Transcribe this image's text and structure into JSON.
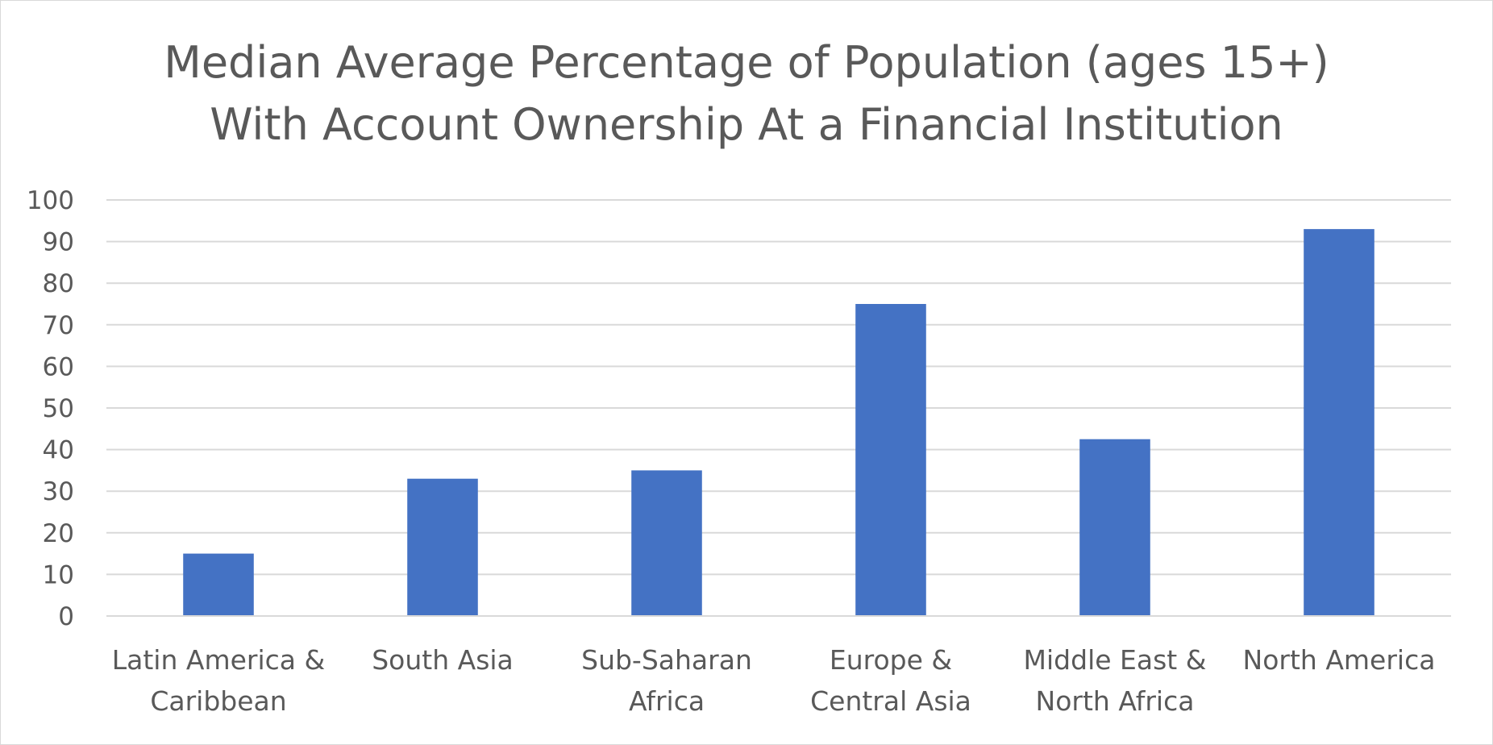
{
  "chart_data": {
    "type": "bar",
    "title_lines": [
      "Median Average Percentage of Population (ages 15+)",
      "With Account Ownership At a Financial Institution"
    ],
    "xlabel": "",
    "ylabel": "",
    "categories": [
      [
        "Latin America &",
        "Caribbean"
      ],
      [
        "South Asia"
      ],
      [
        "Sub-Saharan",
        "Africa"
      ],
      [
        "Europe &",
        "Central Asia"
      ],
      [
        "Middle East &",
        "North Africa"
      ],
      [
        "North America"
      ]
    ],
    "values": [
      15,
      33,
      35,
      75,
      42.5,
      93
    ],
    "ylim": [
      0,
      100
    ],
    "yticks": [
      0,
      10,
      20,
      30,
      40,
      50,
      60,
      70,
      80,
      90,
      100
    ],
    "grid": true,
    "legend": "none",
    "bar_color": "#4472c4",
    "grid_color": "#d9d9d9",
    "text_color": "#595959"
  }
}
